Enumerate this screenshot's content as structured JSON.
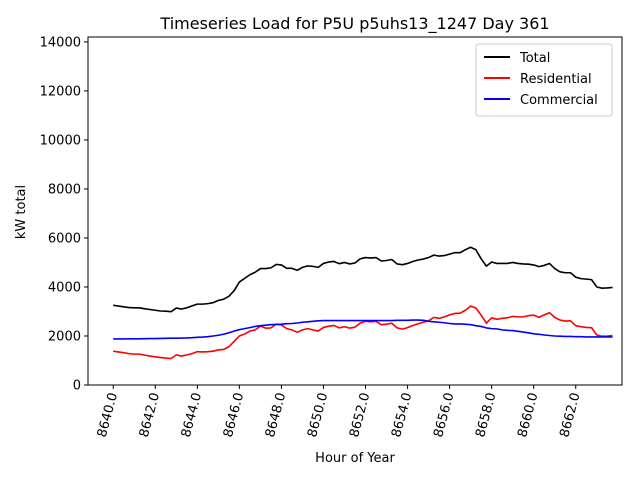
{
  "chart_data": {
    "type": "line",
    "title": "Timeseries Load for P5U p5uhs13_1247  Day 361",
    "xlabel": "Hour of Year",
    "ylabel": "kW total",
    "xlim": [
      8638.8,
      8664.2
    ],
    "ylim": [
      0,
      14200
    ],
    "xticks": [
      8640,
      8642,
      8644,
      8646,
      8648,
      8650,
      8652,
      8654,
      8656,
      8658,
      8660,
      8662
    ],
    "xtick_labels": [
      "8640.0",
      "8642.0",
      "8644.0",
      "8646.0",
      "8648.0",
      "8650.0",
      "8652.0",
      "8654.0",
      "8656.0",
      "8658.0",
      "8660.0",
      "8662.0"
    ],
    "yticks": [
      0,
      2000,
      4000,
      6000,
      8000,
      10000,
      12000,
      14000
    ],
    "ytick_labels": [
      "0",
      "2000",
      "4000",
      "6000",
      "8000",
      "10000",
      "12000",
      "14000"
    ],
    "x": [
      8640.0,
      8640.25,
      8640.5,
      8640.75,
      8641.0,
      8641.25,
      8641.5,
      8641.75,
      8642.0,
      8642.25,
      8642.5,
      8642.75,
      8643.0,
      8643.25,
      8643.5,
      8643.75,
      8644.0,
      8644.25,
      8644.5,
      8644.75,
      8645.0,
      8645.25,
      8645.5,
      8645.75,
      8646.0,
      8646.25,
      8646.5,
      8646.75,
      8647.0,
      8647.25,
      8647.5,
      8647.75,
      8648.0,
      8648.25,
      8648.5,
      8648.75,
      8649.0,
      8649.25,
      8649.5,
      8649.75,
      8650.0,
      8650.25,
      8650.5,
      8650.75,
      8651.0,
      8651.25,
      8651.5,
      8651.75,
      8652.0,
      8652.25,
      8652.5,
      8652.75,
      8653.0,
      8653.25,
      8653.5,
      8653.75,
      8654.0,
      8654.25,
      8654.5,
      8654.75,
      8655.0,
      8655.25,
      8655.5,
      8655.75,
      8656.0,
      8656.25,
      8656.5,
      8656.75,
      8657.0,
      8657.25,
      8657.5,
      8657.75,
      8658.0,
      8658.25,
      8658.5,
      8658.75,
      8659.0,
      8659.25,
      8659.5,
      8659.75,
      8660.0,
      8660.25,
      8660.5,
      8660.75,
      8661.0,
      8661.25,
      8661.5,
      8661.75,
      8662.0,
      8662.25,
      8662.5,
      8662.75,
      8663.0,
      8663.25,
      8663.5,
      8663.75
    ],
    "series": [
      {
        "name": "Total",
        "color": "#000000",
        "values": [
          3250,
          3220,
          3190,
          3160,
          3150,
          3150,
          3110,
          3080,
          3050,
          3020,
          3010,
          2990,
          3140,
          3100,
          3150,
          3230,
          3300,
          3300,
          3320,
          3360,
          3450,
          3500,
          3620,
          3850,
          4200,
          4350,
          4500,
          4600,
          4750,
          4750,
          4780,
          4920,
          4900,
          4760,
          4760,
          4680,
          4800,
          4860,
          4840,
          4800,
          4960,
          5020,
          5040,
          4950,
          5000,
          4940,
          4980,
          5150,
          5200,
          5180,
          5200,
          5060,
          5080,
          5120,
          4940,
          4910,
          4960,
          5040,
          5100,
          5140,
          5200,
          5300,
          5260,
          5280,
          5340,
          5400,
          5400,
          5520,
          5620,
          5520,
          5150,
          4850,
          5020,
          4960,
          4960,
          4960,
          5000,
          4960,
          4940,
          4930,
          4900,
          4830,
          4880,
          4960,
          4750,
          4620,
          4580,
          4580,
          4400,
          4340,
          4320,
          4300,
          4000,
          3950,
          3960,
          3980
        ]
      },
      {
        "name": "Residential",
        "color": "#ff0000",
        "values": [
          1380,
          1350,
          1320,
          1280,
          1260,
          1260,
          1220,
          1180,
          1150,
          1120,
          1100,
          1080,
          1230,
          1180,
          1230,
          1280,
          1360,
          1350,
          1360,
          1380,
          1430,
          1450,
          1560,
          1780,
          2000,
          2080,
          2200,
          2250,
          2400,
          2320,
          2330,
          2480,
          2450,
          2300,
          2250,
          2150,
          2250,
          2300,
          2250,
          2200,
          2350,
          2400,
          2430,
          2330,
          2380,
          2320,
          2360,
          2530,
          2600,
          2580,
          2600,
          2460,
          2480,
          2520,
          2330,
          2280,
          2340,
          2430,
          2500,
          2560,
          2620,
          2760,
          2720,
          2780,
          2860,
          2920,
          2930,
          3050,
          3220,
          3140,
          2850,
          2520,
          2740,
          2680,
          2720,
          2740,
          2800,
          2780,
          2780,
          2830,
          2850,
          2760,
          2860,
          2950,
          2760,
          2650,
          2610,
          2620,
          2420,
          2380,
          2350,
          2340,
          2040,
          1990,
          2000,
          2020
        ]
      },
      {
        "name": "Commercial",
        "color": "#0000ff",
        "values": [
          1880,
          1880,
          1880,
          1885,
          1885,
          1885,
          1890,
          1895,
          1895,
          1900,
          1905,
          1910,
          1910,
          1915,
          1920,
          1930,
          1945,
          1955,
          1970,
          2000,
          2030,
          2070,
          2130,
          2200,
          2260,
          2300,
          2340,
          2390,
          2420,
          2440,
          2460,
          2470,
          2480,
          2500,
          2510,
          2530,
          2560,
          2580,
          2600,
          2620,
          2630,
          2630,
          2630,
          2630,
          2630,
          2630,
          2630,
          2630,
          2630,
          2630,
          2630,
          2630,
          2630,
          2630,
          2640,
          2640,
          2640,
          2650,
          2650,
          2640,
          2600,
          2580,
          2560,
          2540,
          2510,
          2490,
          2490,
          2480,
          2460,
          2420,
          2390,
          2330,
          2300,
          2290,
          2250,
          2230,
          2220,
          2190,
          2160,
          2130,
          2090,
          2070,
          2040,
          2020,
          2000,
          1990,
          1980,
          1980,
          1970,
          1970,
          1960,
          1960,
          1960,
          1960,
          1960,
          1960
        ]
      }
    ],
    "legend": {
      "position": "upper right",
      "entries": [
        "Total",
        "Residential",
        "Commercial"
      ]
    },
    "grid": false
  }
}
